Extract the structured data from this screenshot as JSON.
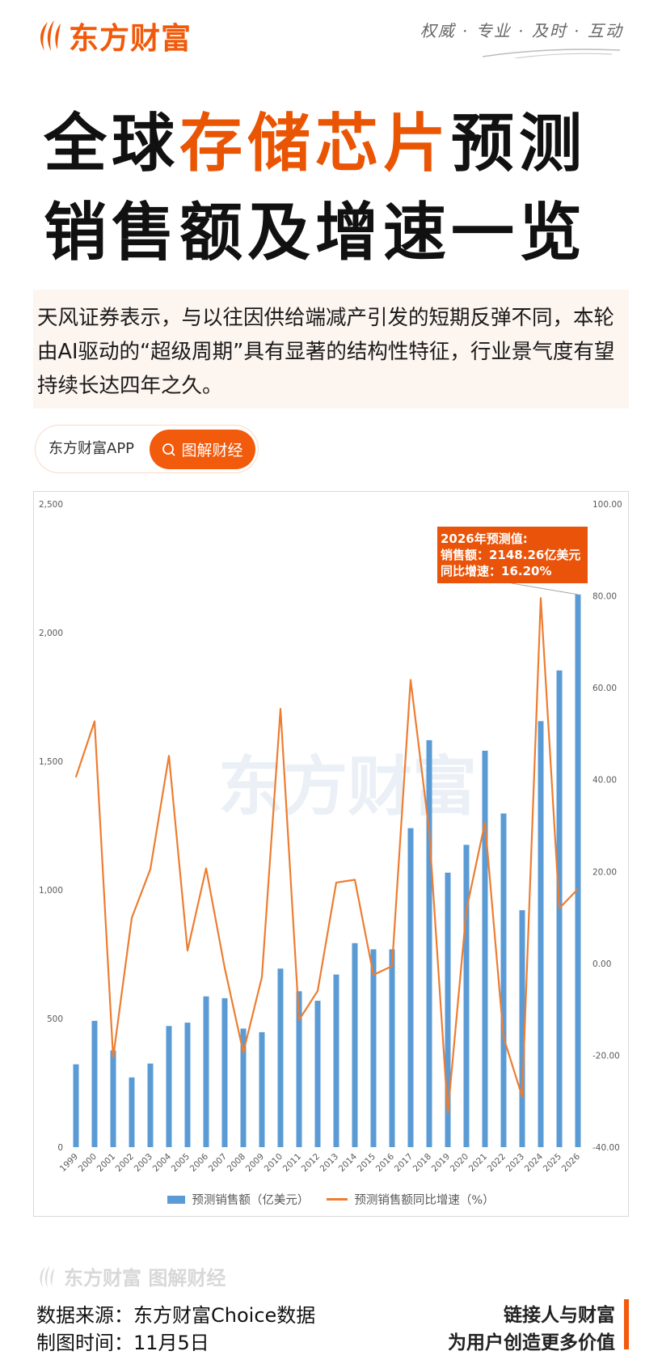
{
  "header": {
    "logo_text": "东方财富",
    "slogan": "权威 · 专业 · 及时 · 互动",
    "brand_color": "#f15a0a"
  },
  "title": {
    "line1_pre": "全球",
    "line1_highlight": "存储芯片",
    "line1_post": "预测",
    "line2": "销售额及增速一览",
    "highlight_color": "#ea5504"
  },
  "quote": "天风证券表示，与以往因供给端减产引发的短期反弹不同，本轮由AI驱动的“超级周期”具有显著的结构性特征，行业景气度有望持续长达四年之久。",
  "app_pill": {
    "label": "东方财富APP",
    "button": "图解财经",
    "button_icon": "search-icon"
  },
  "chart_data": {
    "type": "bar+line",
    "categories": [
      "1999",
      "2000",
      "2001",
      "2002",
      "2003",
      "2004",
      "2005",
      "2006",
      "2007",
      "2008",
      "2009",
      "2010",
      "2011",
      "2012",
      "2013",
      "2014",
      "2015",
      "2016",
      "2017",
      "2018",
      "2019",
      "2020",
      "2021",
      "2022",
      "2023",
      "2024",
      "2025",
      "2026"
    ],
    "series": [
      {
        "name": "预测销售额（亿美元）",
        "type": "bar",
        "axis": "left",
        "color": "#5b9bd5",
        "values": [
          322,
          491,
          376,
          271,
          325,
          471,
          484,
          586,
          579,
          461,
          447,
          694,
          606,
          569,
          671,
          793,
          769,
          769,
          1240,
          1582,
          1067,
          1175,
          1541,
          1297,
          921,
          1656,
          1853,
          2148.26
        ]
      },
      {
        "name": "预测销售额同比增速（%）",
        "type": "line",
        "axis": "right",
        "color": "#ed7d31",
        "values": [
          40.6,
          52.7,
          -20.5,
          9.9,
          20.5,
          45.2,
          2.8,
          20.7,
          -1.0,
          -19.4,
          -3.0,
          55.4,
          -12.3,
          -6.0,
          17.6,
          18.2,
          -2.5,
          -0.6,
          61.7,
          28.8,
          -32.6,
          11.6,
          30.7,
          -16.1,
          -29.0,
          79.5,
          12.0,
          16.2
        ]
      }
    ],
    "y_left": {
      "range": [
        0,
        2500
      ],
      "ticks": [
        "0",
        "500",
        "1,000",
        "1,500",
        "2,000",
        "2,500"
      ]
    },
    "y_right": {
      "range": [
        -40,
        100
      ],
      "ticks": [
        "-40.00",
        "-20.00",
        "0.00",
        "20.00",
        "40.00",
        "60.00",
        "80.00",
        "100.00"
      ]
    },
    "grid": false,
    "legend_position": "bottom",
    "annotation": {
      "lines": [
        "2026年预测值:",
        "销售额：2148.26亿美元",
        "同比增速：16.20%"
      ],
      "color": "#e9540a"
    },
    "watermark": "东方财富"
  },
  "footer": {
    "logo_text": "东方财富 图解财经",
    "source": "数据来源：东方财富Choice数据",
    "date": "制图时间：11月5日",
    "tagline1": "链接人与财富",
    "tagline2": "为用户创造更多价值"
  }
}
